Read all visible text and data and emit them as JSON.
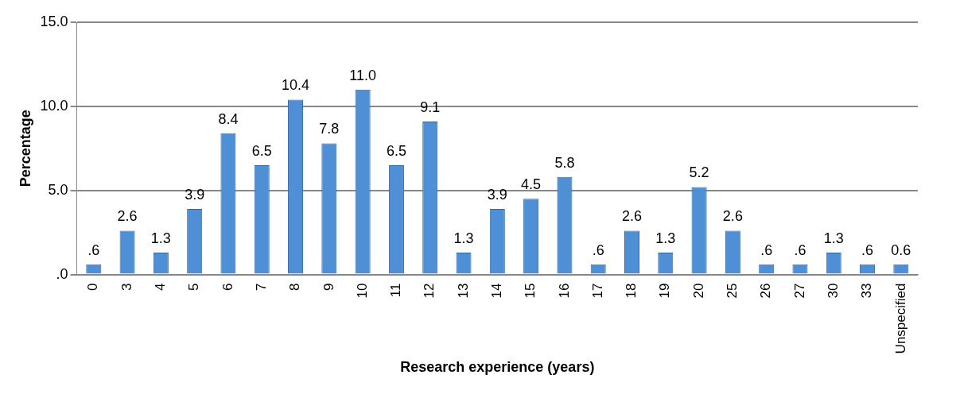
{
  "chart_data": {
    "type": "bar",
    "xlabel": "Research experience (years)",
    "ylabel": "Percentage",
    "categories": [
      "0",
      "3",
      "4",
      "5",
      "6",
      "7",
      "8",
      "9",
      "10",
      "11",
      "12",
      "13",
      "14",
      "15",
      "16",
      "17",
      "18",
      "19",
      "20",
      "25",
      "26",
      "27",
      "30",
      "33",
      "Unspecified"
    ],
    "values": [
      0.6,
      2.6,
      1.3,
      3.9,
      8.4,
      6.5,
      10.4,
      7.8,
      11.0,
      6.5,
      9.1,
      1.3,
      3.9,
      4.5,
      5.8,
      0.6,
      2.6,
      1.3,
      5.2,
      2.6,
      0.6,
      0.6,
      1.3,
      0.6,
      0.6
    ],
    "value_labels": [
      ".6",
      "2.6",
      "1.3",
      "3.9",
      "8.4",
      "6.5",
      "10.4",
      "7.8",
      "11.0",
      "6.5",
      "9.1",
      "1.3",
      "3.9",
      "4.5",
      "5.8",
      ".6",
      "2.6",
      "1.3",
      "5.2",
      "2.6",
      ".6",
      ".6",
      "1.3",
      ".6",
      "0.6"
    ],
    "color": "#4f8fd6",
    "ylim": [
      0,
      15
    ],
    "yticks": [
      {
        "value": 0,
        "label": ".0"
      },
      {
        "value": 5,
        "label": "5.0"
      },
      {
        "value": 10,
        "label": "10.0"
      },
      {
        "value": 15,
        "label": "15.0"
      }
    ],
    "grid": "y",
    "legend": false
  }
}
